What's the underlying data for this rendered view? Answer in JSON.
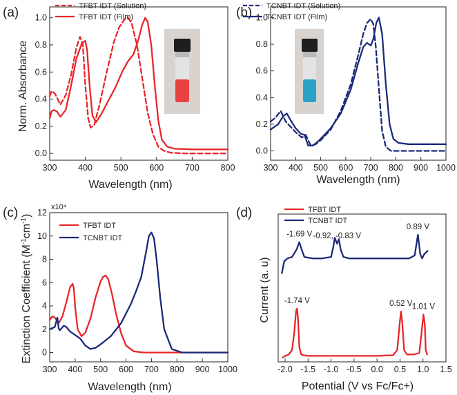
{
  "colors": {
    "red": "#e8262a",
    "navy": "#1b2a78",
    "axis": "#333333"
  },
  "chart_data": [
    {
      "panel": "(a)",
      "type": "line",
      "xlabel": "Wavelength (nm)",
      "ylabel": "Norm. Absorbance",
      "xlim": [
        300,
        800
      ],
      "ylim": [
        -0.05,
        1.08
      ],
      "x_ticks": [
        "300",
        "400",
        "500",
        "600",
        "700",
        "800"
      ],
      "y_ticks": [
        "0.0",
        "0.2",
        "0.4",
        "0.6",
        "0.8",
        "1.0"
      ],
      "legend_position": "top-left",
      "inset": "vial photo (red solution)",
      "series": [
        {
          "name": "TFBT IDT (Solution)",
          "color": "#e8262a",
          "dash": true,
          "x": [
            300,
            305,
            315,
            330,
            345,
            360,
            375,
            385,
            393,
            400,
            408,
            415,
            425,
            440,
            460,
            480,
            495,
            510,
            520,
            530,
            545,
            560,
            575,
            590,
            605,
            620,
            640,
            680,
            740,
            800
          ],
          "y": [
            0.42,
            0.46,
            0.44,
            0.36,
            0.43,
            0.58,
            0.78,
            0.86,
            0.8,
            0.5,
            0.26,
            0.19,
            0.21,
            0.36,
            0.6,
            0.82,
            0.93,
            0.99,
            1.0,
            0.96,
            0.8,
            0.55,
            0.3,
            0.14,
            0.05,
            0.02,
            0.005,
            0.0,
            0.0,
            0.0
          ]
        },
        {
          "name": "TFBT IDT (Film)",
          "color": "#e8262a",
          "dash": false,
          "x": [
            300,
            305,
            312,
            320,
            330,
            345,
            360,
            375,
            390,
            400,
            405,
            412,
            420,
            430,
            445,
            465,
            485,
            505,
            520,
            535,
            548,
            560,
            568,
            575,
            585,
            595,
            605,
            615,
            630,
            650,
            700,
            750,
            800
          ],
          "y": [
            0.26,
            0.31,
            0.32,
            0.31,
            0.27,
            0.32,
            0.5,
            0.7,
            0.81,
            0.83,
            0.76,
            0.5,
            0.28,
            0.23,
            0.29,
            0.39,
            0.49,
            0.61,
            0.68,
            0.73,
            0.83,
            0.95,
            1.0,
            0.97,
            0.8,
            0.5,
            0.24,
            0.1,
            0.05,
            0.035,
            0.03,
            0.03,
            0.03
          ]
        }
      ]
    },
    {
      "panel": "(b)",
      "type": "line",
      "xlabel": "Wavelength (nm)",
      "ylabel": "",
      "xlim": [
        300,
        1000
      ],
      "ylim": [
        -0.07,
        1.08
      ],
      "x_ticks": [
        "300",
        "400",
        "500",
        "600",
        "700",
        "800",
        "900",
        "1000"
      ],
      "y_ticks": [
        "0.0",
        "0.2",
        "0.4",
        "0.6",
        "0.8",
        "1.0"
      ],
      "legend_position": "top-left",
      "inset": "vial photo (blue solution)",
      "series": [
        {
          "name": "TCNBT IDT (Solution)",
          "color": "#1b2a78",
          "dash": true,
          "x": [
            300,
            320,
            340,
            360,
            380,
            400,
            425,
            440,
            460,
            480,
            500,
            540,
            580,
            620,
            650,
            670,
            685,
            700,
            710,
            720,
            735,
            745,
            760,
            780,
            820,
            900,
            1000
          ],
          "y": [
            0.22,
            0.25,
            0.3,
            0.22,
            0.18,
            0.14,
            0.1,
            0.12,
            0.04,
            0.05,
            0.08,
            0.16,
            0.3,
            0.5,
            0.72,
            0.88,
            0.96,
            0.99,
            0.95,
            0.78,
            0.4,
            0.15,
            0.03,
            0.0,
            0.0,
            0.0,
            0.0
          ]
        },
        {
          "name": "TCNBT IDT (Film)",
          "color": "#1b2a78",
          "dash": false,
          "x": [
            300,
            330,
            350,
            365,
            380,
            400,
            420,
            435,
            450,
            470,
            500,
            540,
            580,
            620,
            650,
            670,
            685,
            700,
            710,
            722,
            732,
            745,
            760,
            775,
            790,
            810,
            850,
            900,
            1000
          ],
          "y": [
            0.16,
            0.2,
            0.26,
            0.28,
            0.23,
            0.17,
            0.13,
            0.12,
            0.04,
            0.04,
            0.09,
            0.17,
            0.28,
            0.46,
            0.66,
            0.78,
            0.81,
            0.79,
            0.84,
            0.96,
            1.0,
            0.88,
            0.5,
            0.2,
            0.09,
            0.06,
            0.05,
            0.05,
            0.05
          ]
        }
      ]
    },
    {
      "panel": "(c)",
      "type": "line",
      "xlabel": "Wavelength (nm)",
      "ylabel": "Extinction Coefficient (M-1cm-1)",
      "y_exponent": "x10⁴",
      "xlim": [
        300,
        1000
      ],
      "ylim": [
        -0.8,
        12
      ],
      "x_ticks": [
        "300",
        "400",
        "500",
        "600",
        "700",
        "800",
        "900",
        "1000"
      ],
      "y_ticks": [
        "0",
        "2",
        "4",
        "6",
        "8",
        "10",
        "12"
      ],
      "legend_position": "top-left",
      "series": [
        {
          "name": "TFBT IDT",
          "color": "#e8262a",
          "dash": false,
          "x": [
            300,
            310,
            320,
            335,
            350,
            365,
            380,
            390,
            395,
            400,
            410,
            425,
            440,
            460,
            480,
            500,
            510,
            520,
            530,
            545,
            560,
            580,
            600,
            630,
            670,
            720,
            800,
            1000
          ],
          "y": [
            2.8,
            3.1,
            3.0,
            2.5,
            3.1,
            4.3,
            5.6,
            5.9,
            5.5,
            3.9,
            2.0,
            1.4,
            1.7,
            2.9,
            4.7,
            6.1,
            6.5,
            6.6,
            6.3,
            5.0,
            3.4,
            1.7,
            0.6,
            0.1,
            0.0,
            0.0,
            0.0,
            0.0
          ]
        },
        {
          "name": "TCNBT IDT",
          "color": "#1b2a78",
          "dash": false,
          "x": [
            300,
            320,
            330,
            335,
            340,
            355,
            365,
            380,
            400,
            420,
            440,
            460,
            480,
            500,
            540,
            580,
            620,
            640,
            660,
            680,
            690,
            700,
            710,
            720,
            735,
            750,
            780,
            820,
            900,
            1000
          ],
          "y": [
            2.0,
            2.2,
            3.0,
            2.1,
            1.9,
            2.3,
            2.2,
            1.8,
            1.5,
            1.2,
            0.6,
            0.3,
            0.4,
            0.7,
            1.4,
            2.5,
            4.2,
            5.3,
            6.5,
            8.8,
            10.0,
            10.3,
            9.8,
            8.0,
            4.6,
            2.0,
            0.3,
            0.0,
            0.0,
            0.0
          ]
        }
      ]
    },
    {
      "panel": "(d)",
      "type": "line",
      "xlabel": "Potential (V vs Fc/Fc+)",
      "ylabel": "Current (a. u)",
      "xlim": [
        -2.15,
        1.5
      ],
      "ylim": [
        0,
        1
      ],
      "x_ticks": [
        "-2.0",
        "-1.5",
        "-1.0",
        "-0.5",
        "0.0",
        "0.5",
        "1.0",
        "1.5"
      ],
      "legend_position": "top-left",
      "annotations": [
        {
          "text": "-1.69 V",
          "x": -1.69,
          "series": "TCNBT IDT"
        },
        {
          "text": "-0.92, -0.83 V",
          "x": -0.87,
          "series": "TCNBT IDT"
        },
        {
          "text": "0.89 V",
          "x": 0.89,
          "series": "TCNBT IDT"
        },
        {
          "text": "-1.74 V",
          "x": -1.74,
          "series": "TFBT IDT"
        },
        {
          "text": "0.52 V",
          "x": 0.52,
          "series": "TFBT IDT"
        },
        {
          "text": "1.01 V",
          "x": 1.01,
          "series": "TFBT IDT"
        }
      ],
      "series": [
        {
          "name": "TFBT IDT",
          "color": "#e8262a",
          "dash": false,
          "x": [
            -2.05,
            -2.0,
            -1.92,
            -1.85,
            -1.8,
            -1.76,
            -1.74,
            -1.72,
            -1.69,
            -1.65,
            -1.6,
            -1.5,
            -1.0,
            0.0,
            0.35,
            0.44,
            0.49,
            0.52,
            0.55,
            0.59,
            0.65,
            0.8,
            0.92,
            0.97,
            1.01,
            1.04,
            1.06,
            1.09
          ],
          "y": [
            0.03,
            0.04,
            0.05,
            0.08,
            0.2,
            0.35,
            0.36,
            0.3,
            0.1,
            0.05,
            0.045,
            0.04,
            0.04,
            0.04,
            0.045,
            0.08,
            0.25,
            0.34,
            0.26,
            0.08,
            0.05,
            0.05,
            0.06,
            0.2,
            0.32,
            0.25,
            0.08,
            0.05
          ]
        },
        {
          "name": "TCNBT IDT",
          "color": "#1b2a78",
          "dash": false,
          "x": [
            -2.07,
            -2.02,
            -1.95,
            -1.85,
            -1.75,
            -1.69,
            -1.64,
            -1.58,
            -1.4,
            -1.2,
            -1.0,
            -0.95,
            -0.92,
            -0.87,
            -0.83,
            -0.79,
            -0.73,
            -0.6,
            -0.2,
            0.3,
            0.7,
            0.82,
            0.89,
            0.94,
            0.98,
            1.03,
            1.1
          ],
          "y": [
            0.6,
            0.68,
            0.7,
            0.71,
            0.76,
            0.81,
            0.76,
            0.71,
            0.7,
            0.7,
            0.71,
            0.78,
            0.84,
            0.8,
            0.83,
            0.76,
            0.71,
            0.7,
            0.7,
            0.7,
            0.7,
            0.72,
            0.86,
            0.73,
            0.7,
            0.73,
            0.75
          ]
        }
      ]
    }
  ]
}
